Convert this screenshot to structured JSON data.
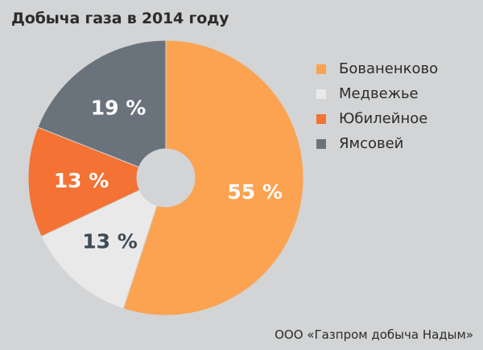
{
  "chart_title": "Добыча газа в 2014 году",
  "source": "ООО «Газпром добыча Надым»",
  "chart_data": {
    "type": "pie",
    "title": "Добыча газа в 2014 году",
    "unit": "%",
    "donut": true,
    "legend_position": "right",
    "slices": [
      {
        "label": "Бованенково",
        "value": 55,
        "value_label": "55 %",
        "color": "#fba351",
        "text_color": "#ffffff"
      },
      {
        "label": "Медвежье",
        "value": 13,
        "value_label": "13 %",
        "color": "#e9e9ea",
        "text_color": "#3d4a55"
      },
      {
        "label": "Юбилейное",
        "value": 13,
        "value_label": "13 %",
        "color": "#f37234",
        "text_color": "#ffffff"
      },
      {
        "label": "Ямсовей",
        "value": 19,
        "value_label": "19 %",
        "color": "#6a737c",
        "text_color": "#ffffff"
      }
    ]
  }
}
